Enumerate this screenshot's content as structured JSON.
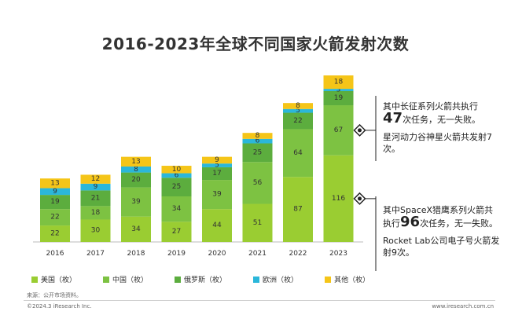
{
  "chart_data": {
    "type": "bar",
    "stacked": true,
    "title": "2016-2023年全球不同国家火箭发射次数",
    "categories": [
      "2016",
      "2017",
      "2018",
      "2019",
      "2020",
      "2021",
      "2022",
      "2023"
    ],
    "series": [
      {
        "name": "美国（枚）",
        "color": "#9ACD32",
        "values": [
          22,
          30,
          34,
          27,
          44,
          51,
          87,
          116
        ]
      },
      {
        "name": "中国（枚）",
        "color": "#7DC242",
        "values": [
          22,
          18,
          39,
          34,
          39,
          56,
          64,
          67
        ]
      },
      {
        "name": "俄罗斯（枚）",
        "color": "#5CAD3E",
        "values": [
          19,
          21,
          20,
          25,
          17,
          25,
          22,
          19
        ]
      },
      {
        "name": "欧洲（枚）",
        "color": "#2BB7DA",
        "values": [
          9,
          9,
          8,
          6,
          5,
          6,
          5,
          3
        ]
      },
      {
        "name": "其他（枚）",
        "color": "#F5C518",
        "values": [
          13,
          12,
          13,
          10,
          9,
          8,
          8,
          18
        ]
      }
    ],
    "grid": false,
    "legend": "bottom"
  },
  "annotations": {
    "china_line1": "其中长征系列火箭共执行",
    "china_big": "47",
    "china_line2": "次任务，无一失败。",
    "china_line3": "星河动力谷神星火箭共发射7次。",
    "us_line1": "其中SpaceX猎鹰系列火箭共执行",
    "us_big": "96",
    "us_line2": "次任务，无一失败。",
    "us_line3": "Rocket Lab公司电子号火箭发射9次。"
  },
  "source": "来源：公开市场资料。",
  "footer": {
    "copyright": "©2024.3 iResearch Inc.",
    "website": "www.iresearch.com.cn"
  }
}
